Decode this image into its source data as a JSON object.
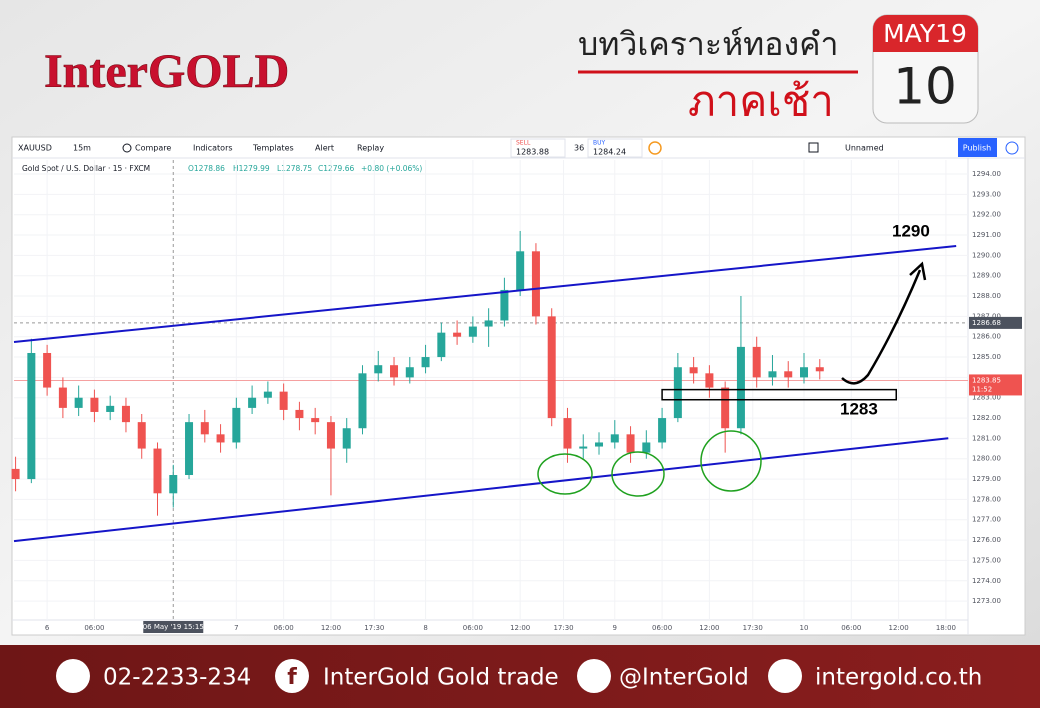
{
  "brand": "InterGOLD",
  "header": {
    "title": "บทวิเคราะห์ทองคำ",
    "subtitle": "ภาคเช้า",
    "date_month": "MAY19",
    "date_day": "10"
  },
  "toolbar": {
    "symbol": "XAUUSD",
    "interval": "15m",
    "compare": "Compare",
    "indicators": "Indicators",
    "templates": "Templates",
    "alert": "Alert",
    "replay": "Replay",
    "sell_label": "SELL",
    "sell_price": "1283.88",
    "spread": "36",
    "buy_label": "BUY",
    "buy_price": "1284.24",
    "layout": "Unnamed",
    "publish": "Publish"
  },
  "legend": {
    "instrument": "Gold Spot / U.S. Dollar · 15 · FXCM",
    "open": "O1278.86",
    "high": "H1279.99",
    "low": "L1278.75",
    "close": "C1279.66",
    "change": "+0.80 (+0.06%)"
  },
  "chart_data": {
    "type": "candlestick",
    "up_color": "#26a69a",
    "down_color": "#ef5350",
    "x": [
      -4,
      -2,
      0,
      2,
      4,
      6,
      8,
      10,
      12,
      14,
      16,
      18,
      20,
      22,
      24,
      26,
      28,
      30,
      32,
      34,
      36,
      38,
      40,
      42,
      44,
      46,
      48,
      50,
      52,
      54,
      56,
      58,
      60,
      62,
      64,
      66,
      68,
      70,
      72,
      74,
      76,
      78,
      80,
      82,
      84,
      86,
      88,
      90,
      92,
      94,
      96,
      98
    ],
    "open": [
      1279.5,
      1279,
      1285.2,
      1283.5,
      1282.5,
      1283,
      1282.3,
      1282.6,
      1281.8,
      1280.5,
      1278.3,
      1279.2,
      1281.8,
      1281.2,
      1280.8,
      1282.5,
      1283,
      1283.3,
      1282.4,
      1282,
      1281.8,
      1280.5,
      1281.5,
      1284.2,
      1284.6,
      1284,
      1284.5,
      1285,
      1286.2,
      1286,
      1286.5,
      1286.8,
      1288.3,
      1290.2,
      1287,
      1282,
      1280.5,
      1280.6,
      1280.8,
      1281.2,
      1280.3,
      1280.8,
      1282,
      1284.5,
      1284.2,
      1283.5,
      1281.5,
      1285.5,
      1284,
      1284.3,
      1284,
      1284.5
    ],
    "high": [
      1280.1,
      1285.9,
      1285.6,
      1284,
      1283.6,
      1283.4,
      1283.1,
      1283,
      1282.2,
      1280.8,
      1279.7,
      1282.2,
      1282.4,
      1281.7,
      1283,
      1283.6,
      1283.8,
      1283.7,
      1282.8,
      1282.5,
      1282.1,
      1282,
      1284.6,
      1285.3,
      1285,
      1285,
      1285.6,
      1286.7,
      1286.8,
      1287,
      1287.4,
      1288.9,
      1291.2,
      1290.6,
      1287.4,
      1282.5,
      1281.2,
      1281.3,
      1281.9,
      1281.6,
      1281.4,
      1282.5,
      1285.2,
      1285,
      1284.6,
      1283.8,
      1288,
      1286,
      1285.1,
      1284.8,
      1285.2,
      1284.9
    ],
    "low": [
      1278.4,
      1278.8,
      1283.1,
      1282,
      1282.1,
      1281.8,
      1281.9,
      1281.3,
      1280,
      1277.2,
      1277.6,
      1279,
      1280.8,
      1280.3,
      1280.5,
      1282.2,
      1282.7,
      1281.9,
      1281.4,
      1281.2,
      1278.2,
      1279.8,
      1281.2,
      1283.8,
      1283.6,
      1283.7,
      1284.2,
      1284.8,
      1285.6,
      1285.7,
      1285.5,
      1286.5,
      1288,
      1286.6,
      1281.6,
      1279.8,
      1280,
      1280.2,
      1280.5,
      1279.8,
      1280,
      1280.5,
      1281.8,
      1283.7,
      1283,
      1280.3,
      1281.2,
      1283.5,
      1283.6,
      1283.5,
      1283.7,
      1283.9
    ],
    "close": [
      1279,
      1285.2,
      1283.5,
      1282.5,
      1283,
      1282.3,
      1282.6,
      1281.8,
      1280.5,
      1278.3,
      1279.2,
      1281.8,
      1281.2,
      1280.8,
      1282.5,
      1283,
      1283.3,
      1282.4,
      1282,
      1281.8,
      1280.5,
      1281.5,
      1284.2,
      1284.6,
      1284,
      1284.5,
      1285,
      1286.2,
      1286,
      1286.5,
      1286.8,
      1288.3,
      1290.2,
      1287,
      1282,
      1280.5,
      1280.6,
      1280.8,
      1281.2,
      1280.3,
      1280.8,
      1282,
      1284.5,
      1284.2,
      1283.5,
      1281.5,
      1285.5,
      1284,
      1284.3,
      1284,
      1284.5,
      1284.3
    ],
    "xlim": [
      -4.2,
      116.8
    ],
    "ylim": [
      1272.07,
      1294.69
    ],
    "xticks": [
      {
        "value": 0,
        "label": "6"
      },
      {
        "value": 6,
        "label": "06:00"
      },
      {
        "value": 24,
        "label": "7"
      },
      {
        "value": 30,
        "label": "06:00"
      },
      {
        "value": 36,
        "label": "12:00"
      },
      {
        "value": 41.5,
        "label": "17:30"
      },
      {
        "value": 48,
        "label": "8"
      },
      {
        "value": 54,
        "label": "06:00"
      },
      {
        "value": 60,
        "label": "12:00"
      },
      {
        "value": 65.5,
        "label": "17:30"
      },
      {
        "value": 72,
        "label": "9"
      },
      {
        "value": 78,
        "label": "06:00"
      },
      {
        "value": 84,
        "label": "12:00"
      },
      {
        "value": 89.5,
        "label": "17:30"
      },
      {
        "value": 96,
        "label": "10"
      },
      {
        "value": 102,
        "label": "06:00"
      },
      {
        "value": 108,
        "label": "12:00"
      },
      {
        "value": 114,
        "label": "18:00"
      }
    ],
    "yticks": [
      {
        "value": 1273,
        "label": "1273.00"
      },
      {
        "value": 1274,
        "label": "1274.00"
      },
      {
        "value": 1275,
        "label": "1275.00"
      },
      {
        "value": 1276,
        "label": "1276.00"
      },
      {
        "value": 1277,
        "label": "1277.00"
      },
      {
        "value": 1278,
        "label": "1278.00"
      },
      {
        "value": 1279,
        "label": "1279.00"
      },
      {
        "value": 1280,
        "label": "1280.00"
      },
      {
        "value": 1281,
        "label": "1281.00"
      },
      {
        "value": 1282,
        "label": "1282.00"
      },
      {
        "value": 1283,
        "label": "1283.00"
      },
      {
        "value": 1284,
        "label": "1284.00"
      },
      {
        "value": 1285,
        "label": "1285.00"
      },
      {
        "value": 1286,
        "label": "1286.00"
      },
      {
        "value": 1287,
        "label": "1287.00"
      },
      {
        "value": 1288,
        "label": "1288.00"
      },
      {
        "value": 1289,
        "label": "1289.00"
      },
      {
        "value": 1290,
        "label": "1290.00"
      },
      {
        "value": 1291,
        "label": "1291.00"
      },
      {
        "value": 1292,
        "label": "1292.00"
      },
      {
        "value": 1293,
        "label": "1293.00"
      },
      {
        "value": 1294,
        "label": "1294.00"
      }
    ],
    "grid": true,
    "trend_lines": [
      {
        "x": [
          -4.2,
          115.3
        ],
        "y": [
          1285.74,
          1290.46
        ],
        "color": "#1515c8"
      },
      {
        "x": [
          -4.2,
          114.3
        ],
        "y": [
          1275.95,
          1281.01
        ],
        "color": "#1515c8"
      }
    ],
    "support_zone": {
      "x": [
        78,
        107.7
      ],
      "y": [
        1283,
        1283.3
      ]
    },
    "annotations": [
      {
        "text": "1290",
        "value": 1290
      },
      {
        "text": "1283",
        "value": 1283
      }
    ],
    "last_price": {
      "value": 1283.85,
      "label": "1283.85",
      "time": "11:52"
    },
    "crosshair": {
      "x": 16,
      "x_label": "06 May '19 15:15",
      "y": 1286.68,
      "y_label": "1286.68"
    }
  },
  "footer": {
    "phone": "02-2233-234",
    "facebook": "InterGold Gold trade",
    "line": "@InterGold",
    "website": "intergold.co.th"
  }
}
